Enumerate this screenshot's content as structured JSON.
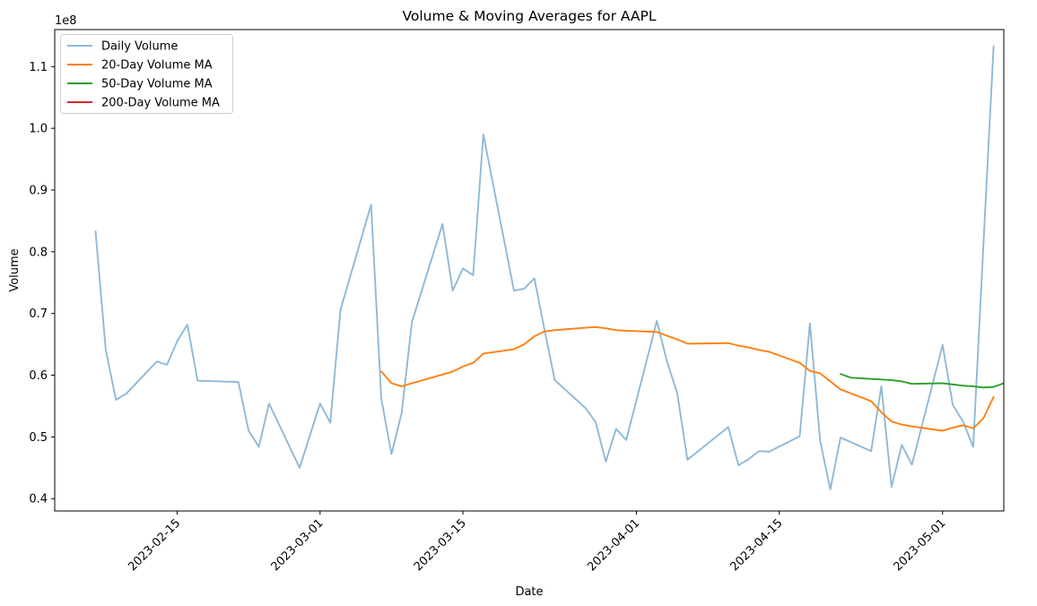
{
  "chart_data": {
    "type": "line",
    "title": "Volume & Moving Averages for AAPL",
    "xlabel": "Date",
    "ylabel": "Volume",
    "y_scale_label": "1e8",
    "ylim": [
      0.38,
      1.16
    ],
    "xlim": [
      "2023-02-03",
      "2023-05-07"
    ],
    "y_ticks": [
      0.4,
      0.5,
      0.6,
      0.7,
      0.8,
      0.9,
      1.0,
      1.1
    ],
    "y_tick_labels": [
      "0.4",
      "0.5",
      "0.6",
      "0.7",
      "0.8",
      "0.9",
      "1.0",
      "1.1"
    ],
    "x_ticks": [
      "2023-02-15",
      "2023-03-01",
      "2023-03-15",
      "2023-04-01",
      "2023-04-15",
      "2023-05-01"
    ],
    "grid": false,
    "legend_position": "top-left",
    "series": [
      {
        "name": "Daily Volume",
        "color": "#8db9d9",
        "points": [
          [
            "2023-02-07",
            0.833
          ],
          [
            "2023-02-08",
            0.641
          ],
          [
            "2023-02-09",
            0.56
          ],
          [
            "2023-02-10",
            0.57
          ],
          [
            "2023-02-13",
            0.622
          ],
          [
            "2023-02-14",
            0.617
          ],
          [
            "2023-02-15",
            0.655
          ],
          [
            "2023-02-16",
            0.682
          ],
          [
            "2023-02-17",
            0.591
          ],
          [
            "2023-02-21",
            0.589
          ],
          [
            "2023-02-22",
            0.51
          ],
          [
            "2023-02-23",
            0.484
          ],
          [
            "2023-02-24",
            0.554
          ],
          [
            "2023-02-27",
            0.45
          ],
          [
            "2023-02-28",
            0.502
          ],
          [
            "2023-03-01",
            0.554
          ],
          [
            "2023-03-02",
            0.523
          ],
          [
            "2023-03-03",
            0.706
          ],
          [
            "2023-03-06",
            0.876
          ],
          [
            "2023-03-07",
            0.562
          ],
          [
            "2023-03-08",
            0.472
          ],
          [
            "2023-03-09",
            0.539
          ],
          [
            "2023-03-10",
            0.686
          ],
          [
            "2023-03-13",
            0.845
          ],
          [
            "2023-03-14",
            0.737
          ],
          [
            "2023-03-15",
            0.773
          ],
          [
            "2023-03-16",
            0.762
          ],
          [
            "2023-03-17",
            0.99
          ],
          [
            "2023-03-20",
            0.737
          ],
          [
            "2023-03-21",
            0.74
          ],
          [
            "2023-03-22",
            0.757
          ],
          [
            "2023-03-23",
            0.673
          ],
          [
            "2023-03-24",
            0.592
          ],
          [
            "2023-03-27",
            0.547
          ],
          [
            "2023-03-28",
            0.524
          ],
          [
            "2023-03-29",
            0.46
          ],
          [
            "2023-03-30",
            0.513
          ],
          [
            "2023-03-31",
            0.495
          ],
          [
            "2023-04-03",
            0.688
          ],
          [
            "2023-04-04",
            0.622
          ],
          [
            "2023-04-05",
            0.571
          ],
          [
            "2023-04-06",
            0.463
          ],
          [
            "2023-04-10",
            0.516
          ],
          [
            "2023-04-11",
            0.454
          ],
          [
            "2023-04-12",
            0.464
          ],
          [
            "2023-04-13",
            0.477
          ],
          [
            "2023-04-14",
            0.476
          ],
          [
            "2023-04-17",
            0.501
          ],
          [
            "2023-04-18",
            0.684
          ],
          [
            "2023-04-19",
            0.494
          ],
          [
            "2023-04-20",
            0.415
          ],
          [
            "2023-04-21",
            0.499
          ],
          [
            "2023-04-24",
            0.477
          ],
          [
            "2023-04-25",
            0.582
          ],
          [
            "2023-04-26",
            0.419
          ],
          [
            "2023-04-27",
            0.487
          ],
          [
            "2023-04-28",
            0.455
          ],
          [
            "2023-05-01",
            0.649
          ],
          [
            "2023-05-02",
            0.552
          ],
          [
            "2023-05-03",
            0.525
          ],
          [
            "2023-05-04",
            0.484
          ],
          [
            "2023-05-05",
            0.811
          ],
          [
            "2023-05-06",
            1.133
          ]
        ]
      },
      {
        "name": "20-Day Volume MA",
        "color": "#ff7f0e",
        "points": [
          [
            "2023-03-07",
            0.606
          ],
          [
            "2023-03-08",
            0.587
          ],
          [
            "2023-03-09",
            0.582
          ],
          [
            "2023-03-10",
            0.587
          ],
          [
            "2023-03-13",
            0.601
          ],
          [
            "2023-03-14",
            0.606
          ],
          [
            "2023-03-15",
            0.614
          ],
          [
            "2023-03-16",
            0.62
          ],
          [
            "2023-03-17",
            0.635
          ],
          [
            "2023-03-20",
            0.642
          ],
          [
            "2023-03-21",
            0.65
          ],
          [
            "2023-03-22",
            0.663
          ],
          [
            "2023-03-23",
            0.671
          ],
          [
            "2023-03-24",
            0.673
          ],
          [
            "2023-03-27",
            0.677
          ],
          [
            "2023-03-28",
            0.678
          ],
          [
            "2023-03-29",
            0.676
          ],
          [
            "2023-03-30",
            0.673
          ],
          [
            "2023-03-31",
            0.672
          ],
          [
            "2023-04-03",
            0.67
          ],
          [
            "2023-04-04",
            0.664
          ],
          [
            "2023-04-05",
            0.658
          ],
          [
            "2023-04-06",
            0.651
          ],
          [
            "2023-04-10",
            0.652
          ],
          [
            "2023-04-11",
            0.648
          ],
          [
            "2023-04-12",
            0.645
          ],
          [
            "2023-04-13",
            0.641
          ],
          [
            "2023-04-14",
            0.638
          ],
          [
            "2023-04-17",
            0.62
          ],
          [
            "2023-04-18",
            0.607
          ],
          [
            "2023-04-19",
            0.603
          ],
          [
            "2023-04-20",
            0.59
          ],
          [
            "2023-04-21",
            0.577
          ],
          [
            "2023-04-24",
            0.558
          ],
          [
            "2023-04-25",
            0.54
          ],
          [
            "2023-04-26",
            0.525
          ],
          [
            "2023-04-27",
            0.52
          ],
          [
            "2023-04-28",
            0.517
          ],
          [
            "2023-05-01",
            0.51
          ],
          [
            "2023-05-02",
            0.515
          ],
          [
            "2023-05-03",
            0.519
          ],
          [
            "2023-05-04",
            0.514
          ],
          [
            "2023-05-05",
            0.53
          ],
          [
            "2023-05-06",
            0.565
          ]
        ]
      },
      {
        "name": "50-Day Volume MA",
        "color": "#2ca02c",
        "points": [
          [
            "2023-04-21",
            0.602
          ],
          [
            "2023-04-22",
            0.596
          ],
          [
            "2023-04-24",
            0.594
          ],
          [
            "2023-04-25",
            0.593
          ],
          [
            "2023-04-26",
            0.592
          ],
          [
            "2023-04-27",
            0.59
          ],
          [
            "2023-04-28",
            0.586
          ],
          [
            "2023-05-01",
            0.587
          ],
          [
            "2023-05-02",
            0.585
          ],
          [
            "2023-05-03",
            0.583
          ],
          [
            "2023-05-04",
            0.582
          ],
          [
            "2023-05-05",
            0.58
          ],
          [
            "2023-05-06",
            0.581
          ],
          [
            "2023-05-07",
            0.587
          ],
          [
            "2023-05-08",
            0.6
          ]
        ]
      },
      {
        "name": "200-Day Volume MA",
        "color": "#d62728",
        "points": []
      }
    ]
  }
}
